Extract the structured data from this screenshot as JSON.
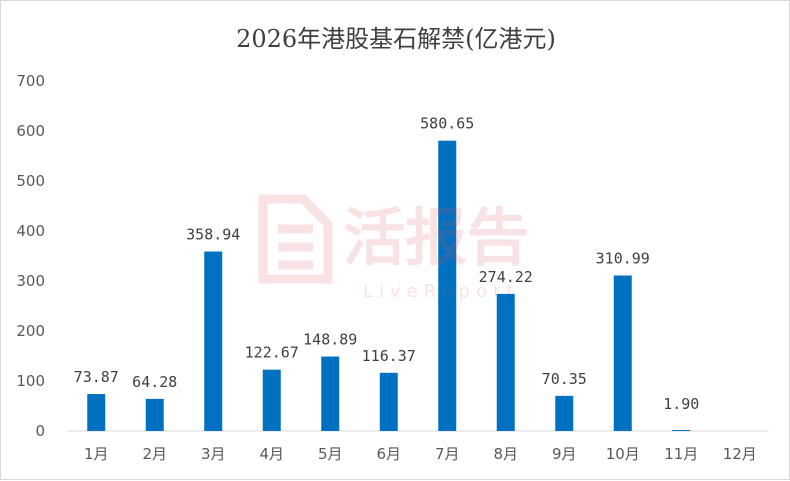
{
  "chart_data": {
    "type": "bar",
    "title": "2026年港股基石解禁(亿港元)",
    "categories": [
      "1月",
      "2月",
      "3月",
      "4月",
      "5月",
      "6月",
      "7月",
      "8月",
      "9月",
      "10月",
      "11月",
      "12月"
    ],
    "values": [
      73.87,
      64.28,
      358.94,
      122.67,
      148.89,
      116.37,
      580.65,
      274.22,
      70.35,
      310.99,
      1.9,
      null
    ],
    "value_labels": [
      "73.87",
      "64.28",
      "358.94",
      "122.67",
      "148.89",
      "116.37",
      "580.65",
      "274.22",
      "70.35",
      "310.99",
      "1.90",
      ""
    ],
    "ylim": [
      0,
      700
    ],
    "yticks": [
      0,
      100,
      200,
      300,
      400,
      500,
      600,
      700
    ],
    "grid": false,
    "legend": "none",
    "bar_color": "#0070C0"
  },
  "watermark": {
    "text": "活报告",
    "subtext": "LiveReport",
    "color": "#e0525a"
  }
}
